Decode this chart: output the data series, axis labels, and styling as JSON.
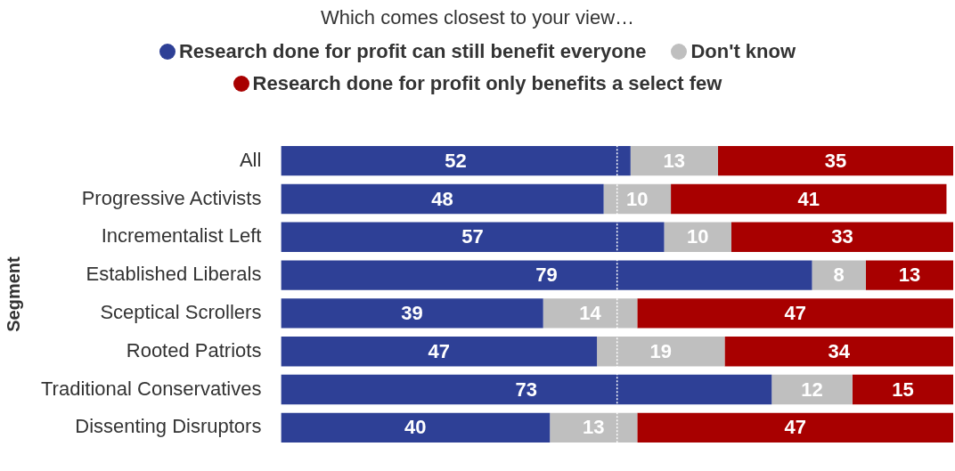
{
  "chart_data": {
    "type": "bar",
    "orientation": "horizontal",
    "stacked": true,
    "title": "Which comes closest to your view…",
    "ylabel": "Segment",
    "categories": [
      "All",
      "Progressive Activists",
      "Incrementalist Left",
      "Established Liberals",
      "Sceptical Scrollers",
      "Rooted Patriots",
      "Traditional Conservatives",
      "Dissenting Disruptors"
    ],
    "series": [
      {
        "name": "Research done for profit can still benefit everyone",
        "color": "#2e4096",
        "values": [
          52,
          48,
          57,
          79,
          39,
          47,
          73,
          40
        ]
      },
      {
        "name": "Don't know",
        "color": "#bfbfbf",
        "values": [
          13,
          10,
          10,
          8,
          14,
          19,
          12,
          13
        ]
      },
      {
        "name": "Research done for profit only benefits a select few",
        "color": "#a80000",
        "values": [
          35,
          41,
          33,
          13,
          47,
          34,
          15,
          47
        ]
      }
    ],
    "data_labels": true,
    "legend": "top",
    "tick_labels": "y",
    "ref_lines": [
      {
        "axis": "x",
        "value": 50,
        "color": "#ffffff",
        "line_style": "dotted"
      }
    ]
  }
}
